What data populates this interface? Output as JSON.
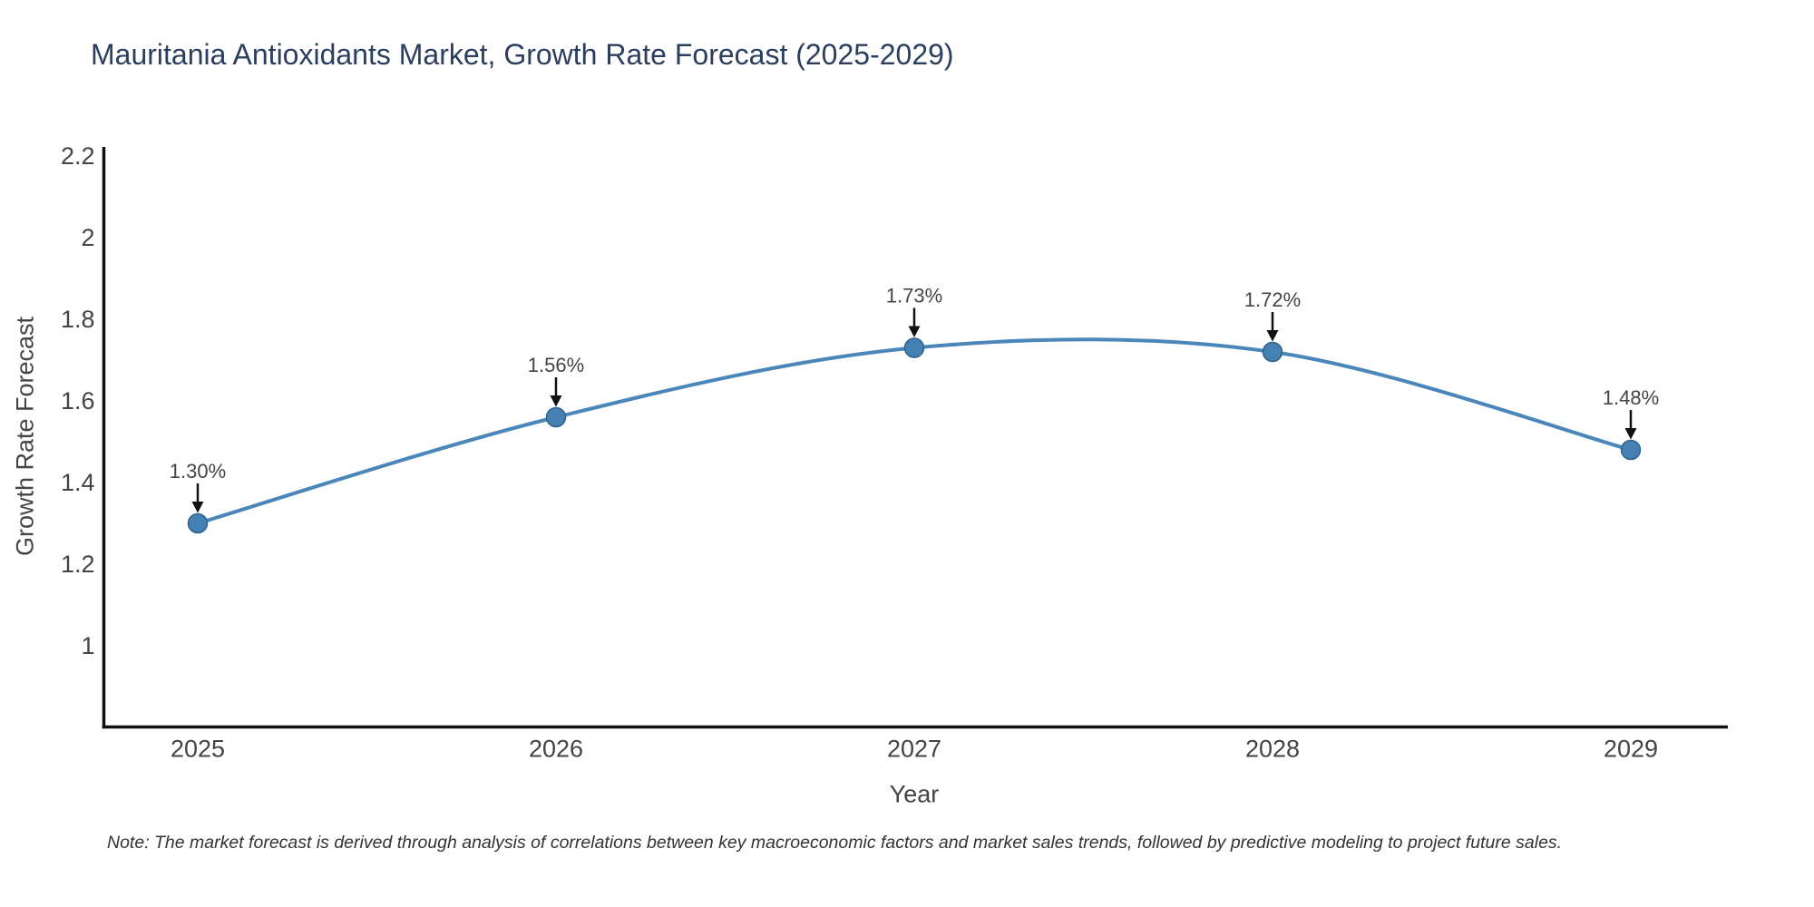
{
  "title": "Mauritania Antioxidants Market, Growth Rate Forecast (2025-2029)",
  "note": "Note: The market forecast is derived through analysis of correlations between key macroeconomic factors and market sales trends, followed by predictive modeling to project future sales.",
  "chart_data": {
    "type": "line",
    "line_shape": "spline",
    "grid": false,
    "legend": "none",
    "title": "Mauritania Antioxidants Market, Growth Rate Forecast (2025-2029)",
    "xlabel": "Year",
    "ylabel": "Growth Rate Forecast",
    "x": [
      2025,
      2026,
      2027,
      2028,
      2029
    ],
    "xtick_labels": [
      "2025",
      "2026",
      "2027",
      "2028",
      "2029"
    ],
    "series": [
      {
        "name": "Growth Rate Forecast",
        "values": [
          1.3,
          1.56,
          1.73,
          1.72,
          1.48
        ]
      }
    ],
    "data_labels": [
      "1.30%",
      "1.56%",
      "1.73%",
      "1.72%",
      "1.48%"
    ],
    "yticks": [
      1,
      1.2,
      1.4,
      1.6,
      1.8,
      2,
      2.2
    ],
    "ytick_labels": [
      "1",
      "1.2",
      "1.4",
      "1.6",
      "1.8",
      "2",
      "2.2"
    ],
    "ylim": [
      0.8,
      2.22
    ],
    "xlim": [
      2024.73,
      2029.27
    ],
    "colors": {
      "line": "#4a86ba",
      "marker_fill": "#4580b2",
      "marker_edge": "#31618e",
      "axis": "#111111",
      "tick_text": "#444444",
      "title_text": "#2a3f5f",
      "annotation_text": "#444444",
      "annotation_arrow": "#111111",
      "background": "#ffffff"
    }
  }
}
